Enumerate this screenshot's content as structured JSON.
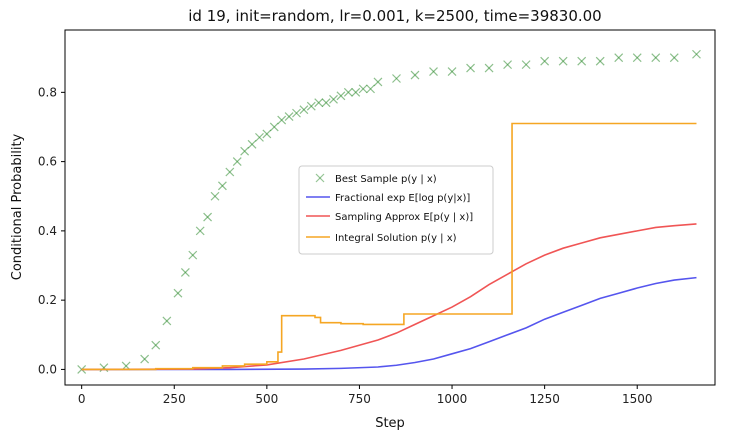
{
  "chart_data": {
    "type": "scatter",
    "title": "id 19, init=random, lr=0.001, k=2500, time=39830.00",
    "xlabel": "Step",
    "ylabel": "Conditional Probability",
    "xlim": [
      -45,
      1710
    ],
    "ylim": [
      -0.045,
      0.98
    ],
    "xticks": [
      0,
      250,
      500,
      750,
      1000,
      1250,
      1500
    ],
    "yticks": [
      0.0,
      0.2,
      0.4,
      0.6,
      0.8
    ],
    "ytick_labels": [
      "0.0",
      "0.2",
      "0.4",
      "0.6",
      "0.8"
    ],
    "grid": false,
    "legend_position": "center-right",
    "series": [
      {
        "name": "Best Sample p(y | x)",
        "kind": "scatter",
        "marker": "x",
        "color": "#2e8b2e",
        "x": [
          0,
          60,
          120,
          170,
          200,
          230,
          260,
          280,
          300,
          320,
          340,
          360,
          380,
          400,
          420,
          440,
          460,
          480,
          500,
          520,
          540,
          560,
          580,
          600,
          620,
          640,
          660,
          680,
          700,
          720,
          740,
          760,
          780,
          800,
          850,
          900,
          950,
          1000,
          1050,
          1100,
          1150,
          1200,
          1250,
          1300,
          1350,
          1400,
          1450,
          1500,
          1550,
          1600,
          1660
        ],
        "y": [
          0.0,
          0.005,
          0.01,
          0.03,
          0.07,
          0.14,
          0.22,
          0.28,
          0.33,
          0.4,
          0.44,
          0.5,
          0.53,
          0.57,
          0.6,
          0.63,
          0.65,
          0.67,
          0.68,
          0.7,
          0.72,
          0.73,
          0.74,
          0.75,
          0.76,
          0.77,
          0.77,
          0.78,
          0.79,
          0.8,
          0.8,
          0.81,
          0.81,
          0.83,
          0.84,
          0.85,
          0.86,
          0.86,
          0.87,
          0.87,
          0.88,
          0.88,
          0.89,
          0.89,
          0.89,
          0.89,
          0.9,
          0.9,
          0.9,
          0.9,
          0.91
        ]
      },
      {
        "name": "Fractional exp E[log p(y|x)]",
        "kind": "line",
        "color": "#5555ee",
        "x": [
          0,
          200,
          400,
          600,
          700,
          800,
          850,
          900,
          950,
          1000,
          1050,
          1100,
          1150,
          1200,
          1250,
          1300,
          1350,
          1400,
          1450,
          1500,
          1550,
          1600,
          1660
        ],
        "y": [
          0.0,
          0.0,
          0.0,
          0.001,
          0.003,
          0.007,
          0.012,
          0.02,
          0.03,
          0.045,
          0.06,
          0.08,
          0.1,
          0.12,
          0.145,
          0.165,
          0.185,
          0.205,
          0.22,
          0.235,
          0.248,
          0.258,
          0.265
        ]
      },
      {
        "name": "Sampling Approx E[p(y | x)]",
        "kind": "line",
        "color": "#f05555",
        "x": [
          0,
          300,
          400,
          500,
          600,
          700,
          800,
          850,
          900,
          950,
          1000,
          1050,
          1100,
          1150,
          1200,
          1250,
          1300,
          1350,
          1400,
          1450,
          1500,
          1550,
          1600,
          1660
        ],
        "y": [
          0.0,
          0.001,
          0.005,
          0.013,
          0.03,
          0.055,
          0.085,
          0.105,
          0.13,
          0.155,
          0.18,
          0.21,
          0.245,
          0.275,
          0.305,
          0.33,
          0.35,
          0.365,
          0.38,
          0.39,
          0.4,
          0.41,
          0.415,
          0.42
        ]
      },
      {
        "name": "Integral Solution p(y | x)",
        "kind": "step",
        "color": "#f5a623",
        "x": [
          0,
          100,
          200,
          300,
          380,
          440,
          500,
          530,
          540,
          590,
          630,
          645,
          700,
          760,
          800,
          870,
          1000,
          1100,
          1162,
          1250,
          1400,
          1660
        ],
        "y": [
          0.0,
          0.0,
          0.002,
          0.005,
          0.01,
          0.015,
          0.022,
          0.05,
          0.155,
          0.155,
          0.15,
          0.135,
          0.132,
          0.13,
          0.13,
          0.16,
          0.16,
          0.16,
          0.71,
          0.71,
          0.71,
          0.71
        ]
      }
    ]
  },
  "legend": {
    "items": [
      {
        "label": "Best Sample p(y | x)",
        "color": "#2e8b2e",
        "marker": "x"
      },
      {
        "label": "Fractional exp E[log p(y|x)]",
        "color": "#5555ee",
        "marker": "line"
      },
      {
        "label": "Sampling Approx E[p(y | x)]",
        "color": "#f05555",
        "marker": "line"
      },
      {
        "label": "Integral Solution p(y | x)",
        "color": "#f5a623",
        "marker": "line"
      }
    ]
  }
}
